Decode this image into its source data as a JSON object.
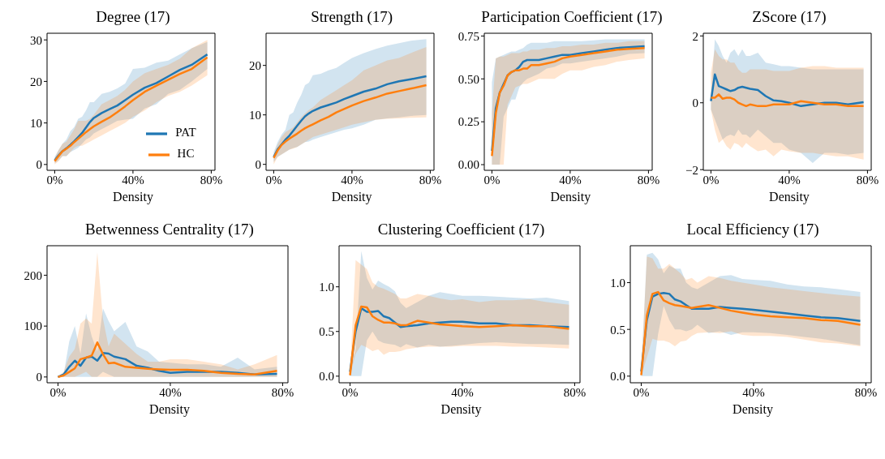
{
  "chart_data": [
    {
      "type": "line",
      "title": "Degree (17)",
      "xlabel": "Density",
      "legend": "bottom right",
      "x": [
        0,
        2,
        4,
        6,
        8,
        10,
        12,
        14,
        16,
        18,
        20,
        24,
        28,
        32,
        36,
        40,
        46,
        52,
        58,
        64,
        70,
        78
      ],
      "xlim": [
        -3.9,
        81.9
      ],
      "xticks": [
        {
          "value": 0,
          "label": "0%"
        },
        {
          "value": 40,
          "label": "40%"
        },
        {
          "value": 80,
          "label": "80%"
        }
      ],
      "ylim": [
        -1.4,
        31.6
      ],
      "yticks": [
        0,
        10,
        20,
        30
      ],
      "series": [
        {
          "name": "PAT",
          "color": "#1f77b4",
          "values": [
            1,
            2.2,
            3.2,
            3.9,
            4.7,
            5.6,
            6.6,
            7.6,
            8.9,
            10.2,
            11.2,
            12.4,
            13.3,
            14.2,
            15.5,
            16.8,
            18.5,
            19.6,
            21.2,
            22.8,
            24,
            26.5
          ],
          "lower": [
            0.3,
            1,
            2,
            2,
            3,
            3.5,
            4,
            5,
            6,
            6.5,
            7.5,
            8.5,
            9.5,
            10.5,
            10.8,
            11,
            13.5,
            14.5,
            17,
            18,
            20,
            23
          ],
          "upper": [
            1.8,
            3.5,
            5,
            6,
            8,
            9,
            11,
            11.5,
            13,
            15,
            15,
            17,
            17.5,
            18.3,
            19.5,
            23,
            23.3,
            24.5,
            25,
            26.5,
            28,
            29.5
          ]
        },
        {
          "name": "HC",
          "color": "#ff7f0e",
          "values": [
            0.8,
            2,
            3.2,
            3.8,
            4.5,
            5.4,
            6.2,
            7,
            7.8,
            8.5,
            9.2,
            10.3,
            11.3,
            12.6,
            14,
            15.5,
            17.5,
            19,
            20.4,
            21.8,
            23,
            25.8
          ],
          "lower": [
            0,
            0.8,
            2,
            2,
            3,
            4,
            4.5,
            4.5,
            5,
            5.5,
            6,
            7,
            8,
            9,
            10,
            11.5,
            13,
            15,
            16.5,
            17.5,
            19,
            21.5
          ],
          "upper": [
            1.5,
            3.5,
            5,
            5.5,
            7,
            8.5,
            10.5,
            10.5,
            10.5,
            11,
            12,
            14.5,
            15.5,
            16.5,
            18,
            20,
            22,
            23,
            24,
            25.5,
            28,
            30
          ]
        }
      ]
    },
    {
      "type": "line",
      "title": "Strength (17)",
      "xlabel": "Density",
      "x": [
        0,
        2,
        4,
        6,
        8,
        10,
        12,
        14,
        16,
        18,
        20,
        24,
        28,
        32,
        36,
        40,
        46,
        52,
        58,
        64,
        70,
        78
      ],
      "xlim": [
        -3.9,
        81.9
      ],
      "xticks": [
        {
          "value": 0,
          "label": "0%"
        },
        {
          "value": 40,
          "label": "40%"
        },
        {
          "value": 80,
          "label": "80%"
        }
      ],
      "ylim": [
        -1.2,
        26.5
      ],
      "yticks": [
        0,
        10,
        20
      ],
      "series": [
        {
          "color": "#1f77b4",
          "values": [
            1.5,
            3,
            4,
            5,
            5.8,
            6.8,
            7.8,
            8.8,
            9.7,
            10.3,
            10.8,
            11.5,
            12,
            12.5,
            13.2,
            13.8,
            14.7,
            15.3,
            16.2,
            16.8,
            17.2,
            17.8
          ],
          "lower": [
            0.5,
            1.5,
            2,
            2.5,
            3,
            3.3,
            3.5,
            4,
            4.5,
            4.6,
            5,
            5.5,
            6,
            6.5,
            7,
            7.3,
            8,
            9,
            9.3,
            9.5,
            9.8,
            10
          ],
          "upper": [
            2.5,
            4.5,
            6,
            7,
            10,
            10.5,
            12.5,
            14,
            16,
            16.5,
            18,
            18.3,
            19,
            19.5,
            20.5,
            21.5,
            22.5,
            23.3,
            24,
            24.5,
            25,
            25.3
          ]
        },
        {
          "color": "#ff7f0e",
          "values": [
            1.3,
            2.8,
            3.9,
            4.6,
            5.2,
            5.7,
            6.2,
            6.8,
            7.3,
            7.7,
            8.1,
            8.9,
            9.6,
            10.5,
            11.2,
            11.9,
            12.8,
            13.5,
            14.3,
            14.8,
            15.3,
            16
          ],
          "lower": [
            0,
            1.5,
            2,
            2.5,
            3,
            3.2,
            3.5,
            4,
            4.5,
            5,
            5.5,
            6,
            6.5,
            7,
            7.5,
            8,
            8.5,
            9,
            9.2,
            9.3,
            9.4,
            9.5
          ],
          "upper": [
            2,
            4,
            5.5,
            6.5,
            7,
            7.5,
            8.5,
            9.5,
            10.3,
            11,
            11.5,
            13,
            14,
            15,
            16,
            17,
            19,
            20,
            21,
            21.5,
            22.5,
            23.7
          ]
        }
      ]
    },
    {
      "type": "line",
      "title": "Participation Coefficient (17)",
      "xlabel": "Density",
      "x": [
        0,
        2,
        4,
        6,
        8,
        10,
        12,
        14,
        16,
        18,
        20,
        24,
        28,
        32,
        36,
        40,
        46,
        52,
        58,
        64,
        70,
        78
      ],
      "xlim": [
        -3.9,
        81.9
      ],
      "xticks": [
        {
          "value": 0,
          "label": "0%"
        },
        {
          "value": 40,
          "label": "40%"
        },
        {
          "value": 80,
          "label": "80%"
        }
      ],
      "ylim": [
        -0.033,
        0.766
      ],
      "yticks": [
        {
          "value": 0,
          "label": "0.00"
        },
        {
          "value": 0.25,
          "label": "0.25"
        },
        {
          "value": 0.5,
          "label": "0.50"
        },
        {
          "value": 0.75,
          "label": "0.75"
        }
      ],
      "series": [
        {
          "color": "#1f77b4",
          "values": [
            0.08,
            0.33,
            0.42,
            0.47,
            0.52,
            0.54,
            0.55,
            0.57,
            0.6,
            0.61,
            0.61,
            0.61,
            0.62,
            0.63,
            0.64,
            0.64,
            0.65,
            0.66,
            0.67,
            0.68,
            0.685,
            0.69
          ],
          "lower": [
            0,
            0,
            0,
            0.28,
            0.33,
            0.38,
            0.38,
            0.45,
            0.48,
            0.5,
            0.51,
            0.53,
            0.56,
            0.57,
            0.59,
            0.59,
            0.6,
            0.61,
            0.62,
            0.63,
            0.645,
            0.65
          ],
          "upper": [
            0.48,
            0.62,
            0.63,
            0.64,
            0.65,
            0.66,
            0.66,
            0.67,
            0.68,
            0.7,
            0.71,
            0.71,
            0.71,
            0.72,
            0.72,
            0.72,
            0.72,
            0.725,
            0.73,
            0.73,
            0.73,
            0.73
          ]
        },
        {
          "color": "#ff7f0e",
          "values": [
            0.05,
            0.3,
            0.42,
            0.46,
            0.52,
            0.54,
            0.55,
            0.55,
            0.56,
            0.56,
            0.58,
            0.58,
            0.59,
            0.6,
            0.62,
            0.63,
            0.64,
            0.65,
            0.66,
            0.67,
            0.675,
            0.68
          ],
          "lower": [
            0,
            0,
            0,
            0,
            0.35,
            0.4,
            0.45,
            0.46,
            0.47,
            0.47,
            0.48,
            0.5,
            0.5,
            0.5,
            0.53,
            0.55,
            0.55,
            0.57,
            0.58,
            0.6,
            0.61,
            0.62
          ],
          "upper": [
            0.3,
            0.62,
            0.63,
            0.63,
            0.64,
            0.65,
            0.65,
            0.65,
            0.66,
            0.66,
            0.67,
            0.67,
            0.68,
            0.68,
            0.69,
            0.69,
            0.7,
            0.7,
            0.71,
            0.71,
            0.72,
            0.72
          ]
        }
      ]
    },
    {
      "type": "line",
      "title": "ZScore (17)",
      "xlabel": "Density",
      "x": [
        0,
        2,
        4,
        6,
        8,
        10,
        12,
        14,
        16,
        18,
        20,
        24,
        28,
        32,
        36,
        40,
        46,
        52,
        58,
        64,
        70,
        78
      ],
      "xlim": [
        -3.9,
        81.9
      ],
      "xticks": [
        {
          "value": 0,
          "label": "0%"
        },
        {
          "value": 40,
          "label": "40%"
        },
        {
          "value": 80,
          "label": "80%"
        }
      ],
      "ylim": [
        -2.02,
        2.08
      ],
      "yticks": [
        {
          "value": -2,
          "label": "−2"
        },
        0,
        2
      ],
      "series": [
        {
          "color": "#1f77b4",
          "values": [
            0.05,
            0.85,
            0.5,
            0.45,
            0.4,
            0.35,
            0.38,
            0.45,
            0.48,
            0.45,
            0.42,
            0.38,
            0.2,
            0.07,
            0.05,
            0,
            -0.1,
            -0.05,
            0,
            0,
            -0.05,
            0.02
          ],
          "lower": [
            -0.2,
            -0.5,
            -0.8,
            -1.1,
            -1,
            -0.95,
            -1,
            -0.8,
            -0.95,
            -0.95,
            -1.05,
            -0.8,
            -1,
            -1.2,
            -1.2,
            -1.4,
            -1.5,
            -1.8,
            -1.5,
            -1.5,
            -1.55,
            -1.5
          ],
          "upper": [
            0.2,
            1.9,
            1.7,
            1.4,
            1.2,
            1.5,
            1.6,
            1.4,
            1.6,
            1.4,
            1.4,
            1.5,
            1.2,
            1.15,
            1.1,
            1.1,
            1.05,
            1,
            1,
            1,
            1,
            1
          ]
        },
        {
          "color": "#ff7f0e",
          "values": [
            0.15,
            0.15,
            0.25,
            0.12,
            0.15,
            0.15,
            0.1,
            0,
            -0.05,
            -0.1,
            -0.05,
            -0.1,
            -0.1,
            -0.05,
            -0.05,
            -0.05,
            0.05,
            0,
            -0.05,
            -0.05,
            -0.1,
            -0.1
          ],
          "lower": [
            -0.2,
            -0.8,
            -1.2,
            -1.1,
            -1.3,
            -1.4,
            -1.2,
            -1.25,
            -1.35,
            -1.2,
            -1.3,
            -1.45,
            -1.4,
            -1.6,
            -1.4,
            -1.45,
            -1.5,
            -1.5,
            -1.55,
            -1.6,
            -1.6,
            -1.7
          ],
          "upper": [
            0.9,
            1.6,
            1.4,
            1.3,
            1.3,
            1.2,
            1.2,
            1,
            0.9,
            0.9,
            1,
            1,
            1,
            0.95,
            0.95,
            0.95,
            1.05,
            1.1,
            1.1,
            1.05,
            1.05,
            1.05
          ]
        }
      ]
    },
    {
      "type": "line",
      "title": "Betwenness Centrality (17)",
      "xlabel": "Density",
      "x": [
        0,
        2,
        4,
        6,
        8,
        10,
        12,
        14,
        16,
        18,
        20,
        24,
        28,
        32,
        36,
        40,
        46,
        52,
        58,
        64,
        70,
        78
      ],
      "xlim": [
        -3.9,
        81.9
      ],
      "xticks": [
        {
          "value": 0,
          "label": "0%"
        },
        {
          "value": 40,
          "label": "40%"
        },
        {
          "value": 80,
          "label": "80%"
        }
      ],
      "ylim": [
        -11.4,
        258
      ],
      "yticks": [
        0,
        100,
        200
      ],
      "series": [
        {
          "color": "#1f77b4",
          "values": [
            0,
            5,
            20,
            32,
            22,
            38,
            40,
            32,
            47,
            46,
            40,
            35,
            22,
            18,
            12,
            8,
            10,
            10,
            10,
            8,
            5,
            6
          ],
          "lower": [
            0,
            0,
            0,
            0,
            0,
            0,
            0,
            0,
            10,
            5,
            0,
            0,
            0,
            0,
            0,
            0,
            0,
            0,
            0,
            0,
            0,
            0
          ],
          "upper": [
            0,
            5,
            70,
            100,
            45,
            125,
            80,
            50,
            135,
            110,
            90,
            108,
            60,
            50,
            30,
            28,
            25,
            25,
            20,
            38,
            15,
            20
          ]
        },
        {
          "color": "#ff7f0e",
          "values": [
            0,
            3,
            10,
            17,
            35,
            38,
            42,
            68,
            45,
            27,
            28,
            20,
            18,
            16,
            15,
            14,
            14,
            12,
            8,
            6,
            5,
            12
          ],
          "lower": [
            0,
            0,
            0,
            0,
            5,
            10,
            0,
            0,
            0,
            0,
            0,
            0,
            0,
            0,
            0,
            0,
            0,
            0,
            0,
            0,
            0,
            0
          ],
          "upper": [
            0,
            10,
            40,
            55,
            105,
            115,
            105,
            245,
            115,
            60,
            85,
            65,
            45,
            30,
            30,
            35,
            35,
            30,
            25,
            15,
            25,
            43
          ]
        }
      ]
    },
    {
      "type": "line",
      "title": "Clustering Coefficient (17)",
      "xlabel": "Density",
      "x": [
        0,
        2,
        4,
        6,
        8,
        10,
        12,
        14,
        16,
        18,
        20,
        24,
        28,
        32,
        36,
        40,
        46,
        52,
        58,
        64,
        70,
        78
      ],
      "xlim": [
        -3.9,
        81.9
      ],
      "xticks": [
        {
          "value": 0,
          "label": "0%"
        },
        {
          "value": 40,
          "label": "40%"
        },
        {
          "value": 80,
          "label": "80%"
        }
      ],
      "ylim": [
        -0.074,
        1.46
      ],
      "yticks": [
        {
          "value": 0,
          "label": "0.0"
        },
        {
          "value": 0.5,
          "label": "0.5"
        },
        {
          "value": 1,
          "label": "1.0"
        }
      ],
      "series": [
        {
          "color": "#1f77b4",
          "values": [
            0.05,
            0.5,
            0.76,
            0.72,
            0.72,
            0.73,
            0.67,
            0.65,
            0.6,
            0.55,
            0.56,
            0.57,
            0.59,
            0.6,
            0.61,
            0.61,
            0.59,
            0.59,
            0.57,
            0.57,
            0.56,
            0.55
          ],
          "lower": [
            0,
            0,
            0,
            0.4,
            0.5,
            0.4,
            0.37,
            0.36,
            0.35,
            0.32,
            0.36,
            0.32,
            0.35,
            0.33,
            0.34,
            0.35,
            0.37,
            0.38,
            0.37,
            0.36,
            0.36,
            0.35
          ],
          "upper": [
            0.07,
            0.3,
            1.4,
            1.1,
            0.97,
            1.07,
            1.03,
            1,
            0.95,
            0.82,
            0.76,
            0.83,
            0.9,
            0.94,
            0.92,
            0.9,
            0.9,
            0.89,
            0.88,
            0.87,
            0.88,
            0.84
          ]
        },
        {
          "color": "#ff7f0e",
          "values": [
            0.01,
            0.57,
            0.78,
            0.77,
            0.67,
            0.63,
            0.6,
            0.6,
            0.59,
            0.57,
            0.57,
            0.62,
            0.6,
            0.58,
            0.57,
            0.56,
            0.55,
            0.56,
            0.57,
            0.56,
            0.56,
            0.53
          ],
          "lower": [
            0,
            0.25,
            0.35,
            0.32,
            0.28,
            0.3,
            0.24,
            0.27,
            0.27,
            0.28,
            0.3,
            0.32,
            0.33,
            0.33,
            0.33,
            0.34,
            0.34,
            0.34,
            0.33,
            0.33,
            0.32,
            0.31
          ],
          "upper": [
            0.05,
            1.3,
            1.25,
            1.2,
            1.05,
            1,
            0.98,
            0.95,
            0.92,
            0.87,
            0.87,
            0.92,
            0.9,
            0.87,
            0.85,
            0.86,
            0.83,
            0.85,
            0.85,
            0.86,
            0.83,
            0.8
          ]
        }
      ]
    },
    {
      "type": "line",
      "title": "Local Efficiency (17)",
      "xlabel": "Density",
      "x": [
        0,
        2,
        4,
        6,
        8,
        10,
        12,
        14,
        16,
        18,
        20,
        24,
        28,
        32,
        36,
        40,
        46,
        52,
        58,
        64,
        70,
        78
      ],
      "xlim": [
        -3.9,
        81.9
      ],
      "xticks": [
        {
          "value": 0,
          "label": "0%"
        },
        {
          "value": 40,
          "label": "40%"
        },
        {
          "value": 80,
          "label": "80%"
        }
      ],
      "ylim": [
        -0.071,
        1.395
      ],
      "yticks": [
        {
          "value": 0,
          "label": "0.0"
        },
        {
          "value": 0.5,
          "label": "0.5"
        },
        {
          "value": 1,
          "label": "1.0"
        }
      ],
      "series": [
        {
          "color": "#1f77b4",
          "values": [
            0.05,
            0.6,
            0.85,
            0.88,
            0.89,
            0.88,
            0.82,
            0.8,
            0.76,
            0.72,
            0.72,
            0.72,
            0.74,
            0.73,
            0.72,
            0.71,
            0.69,
            0.67,
            0.65,
            0.63,
            0.62,
            0.59
          ],
          "lower": [
            0,
            0,
            0,
            0.45,
            0.75,
            0.6,
            0.5,
            0.5,
            0.48,
            0.5,
            0.55,
            0.46,
            0.48,
            0.44,
            0.47,
            0.47,
            0.46,
            0.44,
            0.42,
            0.4,
            0.37,
            0.33
          ],
          "upper": [
            0.05,
            1.3,
            1.32,
            1.25,
            1.1,
            1.18,
            1.15,
            1.15,
            1,
            0.95,
            0.93,
            1,
            1.07,
            1.08,
            1.04,
            1.03,
            1.02,
            0.98,
            0.96,
            0.95,
            0.93,
            0.9
          ]
        },
        {
          "color": "#ff7f0e",
          "values": [
            0.01,
            0.65,
            0.88,
            0.9,
            0.81,
            0.78,
            0.76,
            0.75,
            0.74,
            0.73,
            0.74,
            0.76,
            0.73,
            0.7,
            0.68,
            0.66,
            0.64,
            0.63,
            0.62,
            0.6,
            0.59,
            0.55
          ],
          "lower": [
            0,
            0.2,
            0.4,
            0.38,
            0.38,
            0.36,
            0.32,
            0.37,
            0.38,
            0.43,
            0.46,
            0.47,
            0.46,
            0.48,
            0.44,
            0.43,
            0.43,
            0.42,
            0.39,
            0.36,
            0.35,
            0.32
          ],
          "upper": [
            0.05,
            1.28,
            1.26,
            1.15,
            1.15,
            1.2,
            1.15,
            1.1,
            1.03,
            1.05,
            1,
            1.07,
            1.05,
            1.02,
            1,
            0.98,
            0.95,
            0.93,
            0.91,
            0.89,
            0.87,
            0.85
          ]
        }
      ]
    }
  ]
}
